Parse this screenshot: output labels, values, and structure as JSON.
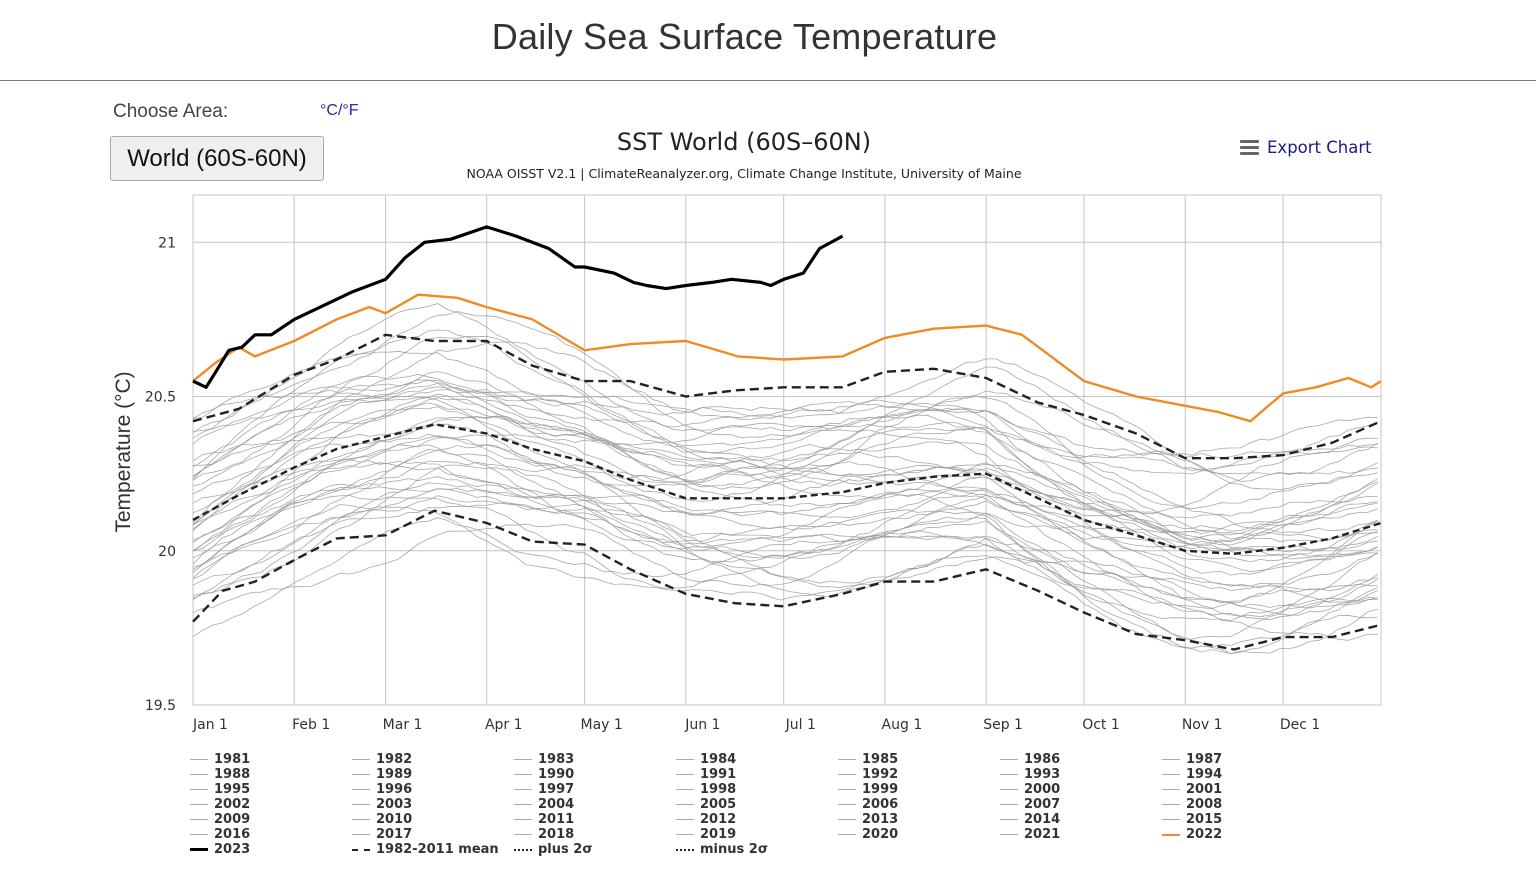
{
  "page": {
    "title": "Daily Sea Surface Temperature",
    "choose_area_label": "Choose Area:",
    "unit_toggle": "°C/°F",
    "area_button": "World (60S-60N)"
  },
  "export": {
    "label": "Export Chart",
    "icon": "hamburger-menu-icon"
  },
  "colors": {
    "year_2023": "#000000",
    "year_2022": "#f08a24",
    "other_years": "#999999",
    "stats": "#222222",
    "gridline": "#c4c4c4",
    "link": "#2a2aa5"
  },
  "chart_data": {
    "type": "line",
    "title": "SST World (60S–60N)",
    "subtitle": "NOAA OISST V2.1 | ClimateReanalyzer.org, Climate Change Institute, University of Maine",
    "xlabel": "",
    "ylabel": "Temperature (°C)",
    "xlim": [
      1,
      365
    ],
    "ylim": [
      19.5,
      21.15
    ],
    "yticks": [
      19.5,
      20,
      20.5,
      21
    ],
    "ytick_labels": [
      "19.5",
      "20",
      "20.5",
      "21"
    ],
    "xticks": [
      1,
      32,
      60,
      91,
      121,
      152,
      182,
      213,
      244,
      274,
      305,
      335
    ],
    "xtick_labels": [
      "Jan 1",
      "Feb 1",
      "Mar 1",
      "Apr 1",
      "May 1",
      "Jun 1",
      "Jul 1",
      "Aug 1",
      "Sep 1",
      "Oct 1",
      "Nov 1",
      "Dec 1"
    ],
    "grid": true,
    "legend_position": "bottom",
    "x_unit": "day of year",
    "highlight_series": [
      {
        "name": "2023",
        "color": "#000000",
        "style": "solid-bold",
        "x": [
          1,
          5,
          8,
          12,
          16,
          20,
          25,
          32,
          40,
          50,
          60,
          66,
          72,
          80,
          91,
          100,
          110,
          118,
          121,
          130,
          136,
          140,
          146,
          152,
          160,
          166,
          175,
          178,
          182,
          188,
          193,
          200
        ],
        "y": [
          20.55,
          20.53,
          20.58,
          20.65,
          20.66,
          20.7,
          20.7,
          20.75,
          20.79,
          20.84,
          20.88,
          20.95,
          21.0,
          21.01,
          21.05,
          21.02,
          20.98,
          20.92,
          20.92,
          20.9,
          20.87,
          20.86,
          20.85,
          20.86,
          20.87,
          20.88,
          20.87,
          20.86,
          20.88,
          20.9,
          20.98,
          21.02
        ]
      },
      {
        "name": "2022",
        "color": "#f08a24",
        "style": "solid",
        "x": [
          1,
          8,
          15,
          20,
          32,
          45,
          55,
          60,
          70,
          82,
          91,
          105,
          121,
          135,
          152,
          168,
          182,
          200,
          213,
          228,
          244,
          255,
          274,
          290,
          305,
          315,
          325,
          335,
          345,
          355,
          362,
          365
        ],
        "y": [
          20.55,
          20.61,
          20.66,
          20.63,
          20.68,
          20.75,
          20.79,
          20.77,
          20.83,
          20.82,
          20.79,
          20.75,
          20.65,
          20.67,
          20.68,
          20.63,
          20.62,
          20.63,
          20.69,
          20.72,
          20.73,
          20.7,
          20.55,
          20.5,
          20.47,
          20.45,
          20.42,
          20.51,
          20.53,
          20.56,
          20.53,
          20.55
        ]
      },
      {
        "name": "1982-2011 mean",
        "color": "#222222",
        "style": "dashed",
        "x": [
          1,
          15,
          32,
          45,
          60,
          75,
          91,
          105,
          121,
          135,
          152,
          167,
          182,
          200,
          213,
          228,
          244,
          260,
          274,
          290,
          305,
          320,
          335,
          350,
          365
        ],
        "y": [
          20.1,
          20.18,
          20.27,
          20.33,
          20.37,
          20.41,
          20.38,
          20.33,
          20.29,
          20.23,
          20.17,
          20.17,
          20.17,
          20.19,
          20.22,
          20.24,
          20.25,
          20.17,
          20.1,
          20.05,
          20.0,
          19.99,
          20.01,
          20.04,
          20.09
        ]
      },
      {
        "name": "plus 2σ",
        "color": "#222222",
        "style": "dash-dot",
        "x": [
          1,
          15,
          32,
          45,
          60,
          75,
          91,
          105,
          121,
          135,
          152,
          167,
          182,
          200,
          213,
          228,
          244,
          260,
          274,
          290,
          305,
          320,
          335,
          350,
          365
        ],
        "y": [
          20.42,
          20.46,
          20.57,
          20.62,
          20.7,
          20.68,
          20.68,
          20.6,
          20.55,
          20.55,
          20.5,
          20.52,
          20.53,
          20.53,
          20.58,
          20.59,
          20.56,
          20.48,
          20.44,
          20.38,
          20.3,
          20.3,
          20.31,
          20.35,
          20.42
        ]
      },
      {
        "name": "minus 2σ",
        "color": "#222222",
        "style": "dash-dot",
        "x": [
          1,
          10,
          20,
          32,
          45,
          60,
          75,
          91,
          105,
          121,
          135,
          152,
          167,
          182,
          200,
          213,
          228,
          244,
          260,
          274,
          290,
          305,
          320,
          335,
          350,
          365
        ],
        "y": [
          19.77,
          19.87,
          19.9,
          19.97,
          20.04,
          20.05,
          20.13,
          20.09,
          20.03,
          20.02,
          19.94,
          19.86,
          19.83,
          19.82,
          19.86,
          19.9,
          19.9,
          19.94,
          19.87,
          19.8,
          19.73,
          19.71,
          19.68,
          19.72,
          19.72,
          19.76
        ]
      }
    ],
    "background_years": {
      "color": "#999999",
      "note": "individual daily climatologies 1981–2021, thin grey lines spanning approx. 19.65–20.82 °C",
      "years": [
        "1981",
        "1982",
        "1983",
        "1984",
        "1985",
        "1986",
        "1987",
        "1988",
        "1989",
        "1990",
        "1991",
        "1992",
        "1993",
        "1994",
        "1995",
        "1996",
        "1997",
        "1998",
        "1999",
        "2000",
        "2001",
        "2002",
        "2003",
        "2004",
        "2005",
        "2006",
        "2007",
        "2008",
        "2009",
        "2010",
        "2011",
        "2012",
        "2013",
        "2014",
        "2015",
        "2016",
        "2017",
        "2018",
        "2019",
        "2020",
        "2021"
      ]
    },
    "legend": [
      {
        "label": "1981",
        "style": "thin"
      },
      {
        "label": "1982",
        "style": "thin"
      },
      {
        "label": "1983",
        "style": "thin"
      },
      {
        "label": "1984",
        "style": "thin"
      },
      {
        "label": "1985",
        "style": "thin"
      },
      {
        "label": "1986",
        "style": "thin"
      },
      {
        "label": "1987",
        "style": "thin"
      },
      {
        "label": "1988",
        "style": "thin"
      },
      {
        "label": "1989",
        "style": "thin"
      },
      {
        "label": "1990",
        "style": "thin"
      },
      {
        "label": "1991",
        "style": "thin"
      },
      {
        "label": "1992",
        "style": "thin"
      },
      {
        "label": "1993",
        "style": "thin"
      },
      {
        "label": "1994",
        "style": "thin"
      },
      {
        "label": "1995",
        "style": "thin"
      },
      {
        "label": "1996",
        "style": "thin"
      },
      {
        "label": "1997",
        "style": "thin"
      },
      {
        "label": "1998",
        "style": "thin"
      },
      {
        "label": "1999",
        "style": "thin"
      },
      {
        "label": "2000",
        "style": "thin"
      },
      {
        "label": "2001",
        "style": "thin"
      },
      {
        "label": "2002",
        "style": "thin"
      },
      {
        "label": "2003",
        "style": "thin"
      },
      {
        "label": "2004",
        "style": "thin"
      },
      {
        "label": "2005",
        "style": "thin"
      },
      {
        "label": "2006",
        "style": "thin"
      },
      {
        "label": "2007",
        "style": "thin"
      },
      {
        "label": "2008",
        "style": "thin"
      },
      {
        "label": "2009",
        "style": "thin"
      },
      {
        "label": "2010",
        "style": "thin"
      },
      {
        "label": "2011",
        "style": "thin"
      },
      {
        "label": "2012",
        "style": "thin"
      },
      {
        "label": "2013",
        "style": "thin"
      },
      {
        "label": "2014",
        "style": "thin"
      },
      {
        "label": "2015",
        "style": "thin"
      },
      {
        "label": "2016",
        "style": "thin"
      },
      {
        "label": "2017",
        "style": "thin"
      },
      {
        "label": "2018",
        "style": "thin"
      },
      {
        "label": "2019",
        "style": "thin"
      },
      {
        "label": "2020",
        "style": "thin"
      },
      {
        "label": "2021",
        "style": "thin"
      },
      {
        "label": "2022",
        "style": "orange"
      },
      {
        "label": "2023",
        "style": "bold"
      },
      {
        "label": "1982-2011 mean",
        "style": "dashed"
      },
      {
        "label": "plus 2σ",
        "style": "dashdot"
      },
      {
        "label": "minus 2σ",
        "style": "dashdot"
      }
    ]
  }
}
